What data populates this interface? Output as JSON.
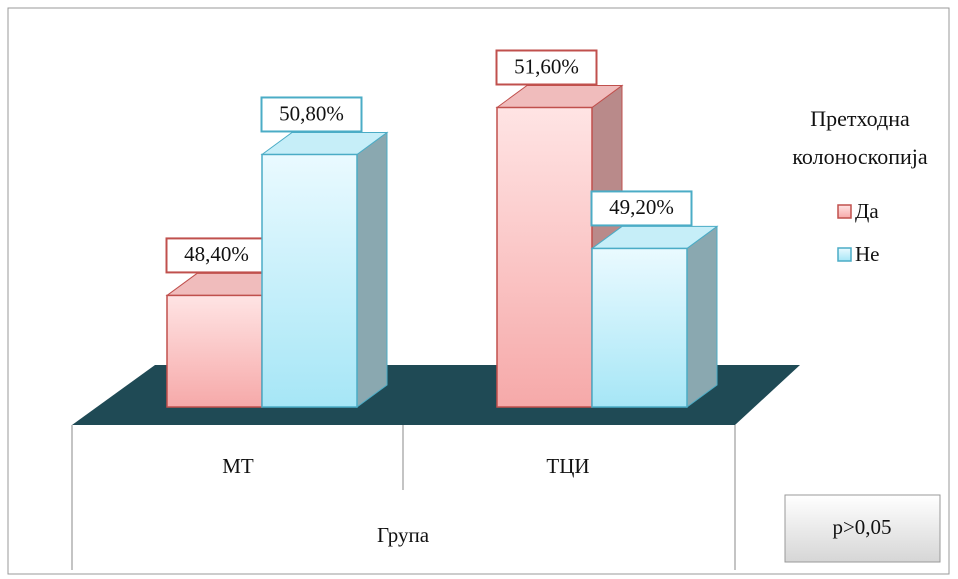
{
  "chart_data": {
    "type": "bar3d",
    "categories": [
      "МТ",
      "ТЦИ"
    ],
    "series": [
      {
        "name": "Да",
        "color": "#f6a9a9",
        "values": [
          48.4,
          51.6
        ],
        "value_labels": [
          "48,40%",
          "51,60%"
        ]
      },
      {
        "name": "Не",
        "color": "#a6e6f6",
        "values": [
          50.8,
          49.2
        ],
        "value_labels": [
          "50,80%",
          "49,20%"
        ]
      }
    ],
    "ylim": [
      46.5,
      52
    ],
    "legend_title": "Претходна колоноскопија",
    "xlabel": "Група",
    "annotation": "p>0,05"
  }
}
